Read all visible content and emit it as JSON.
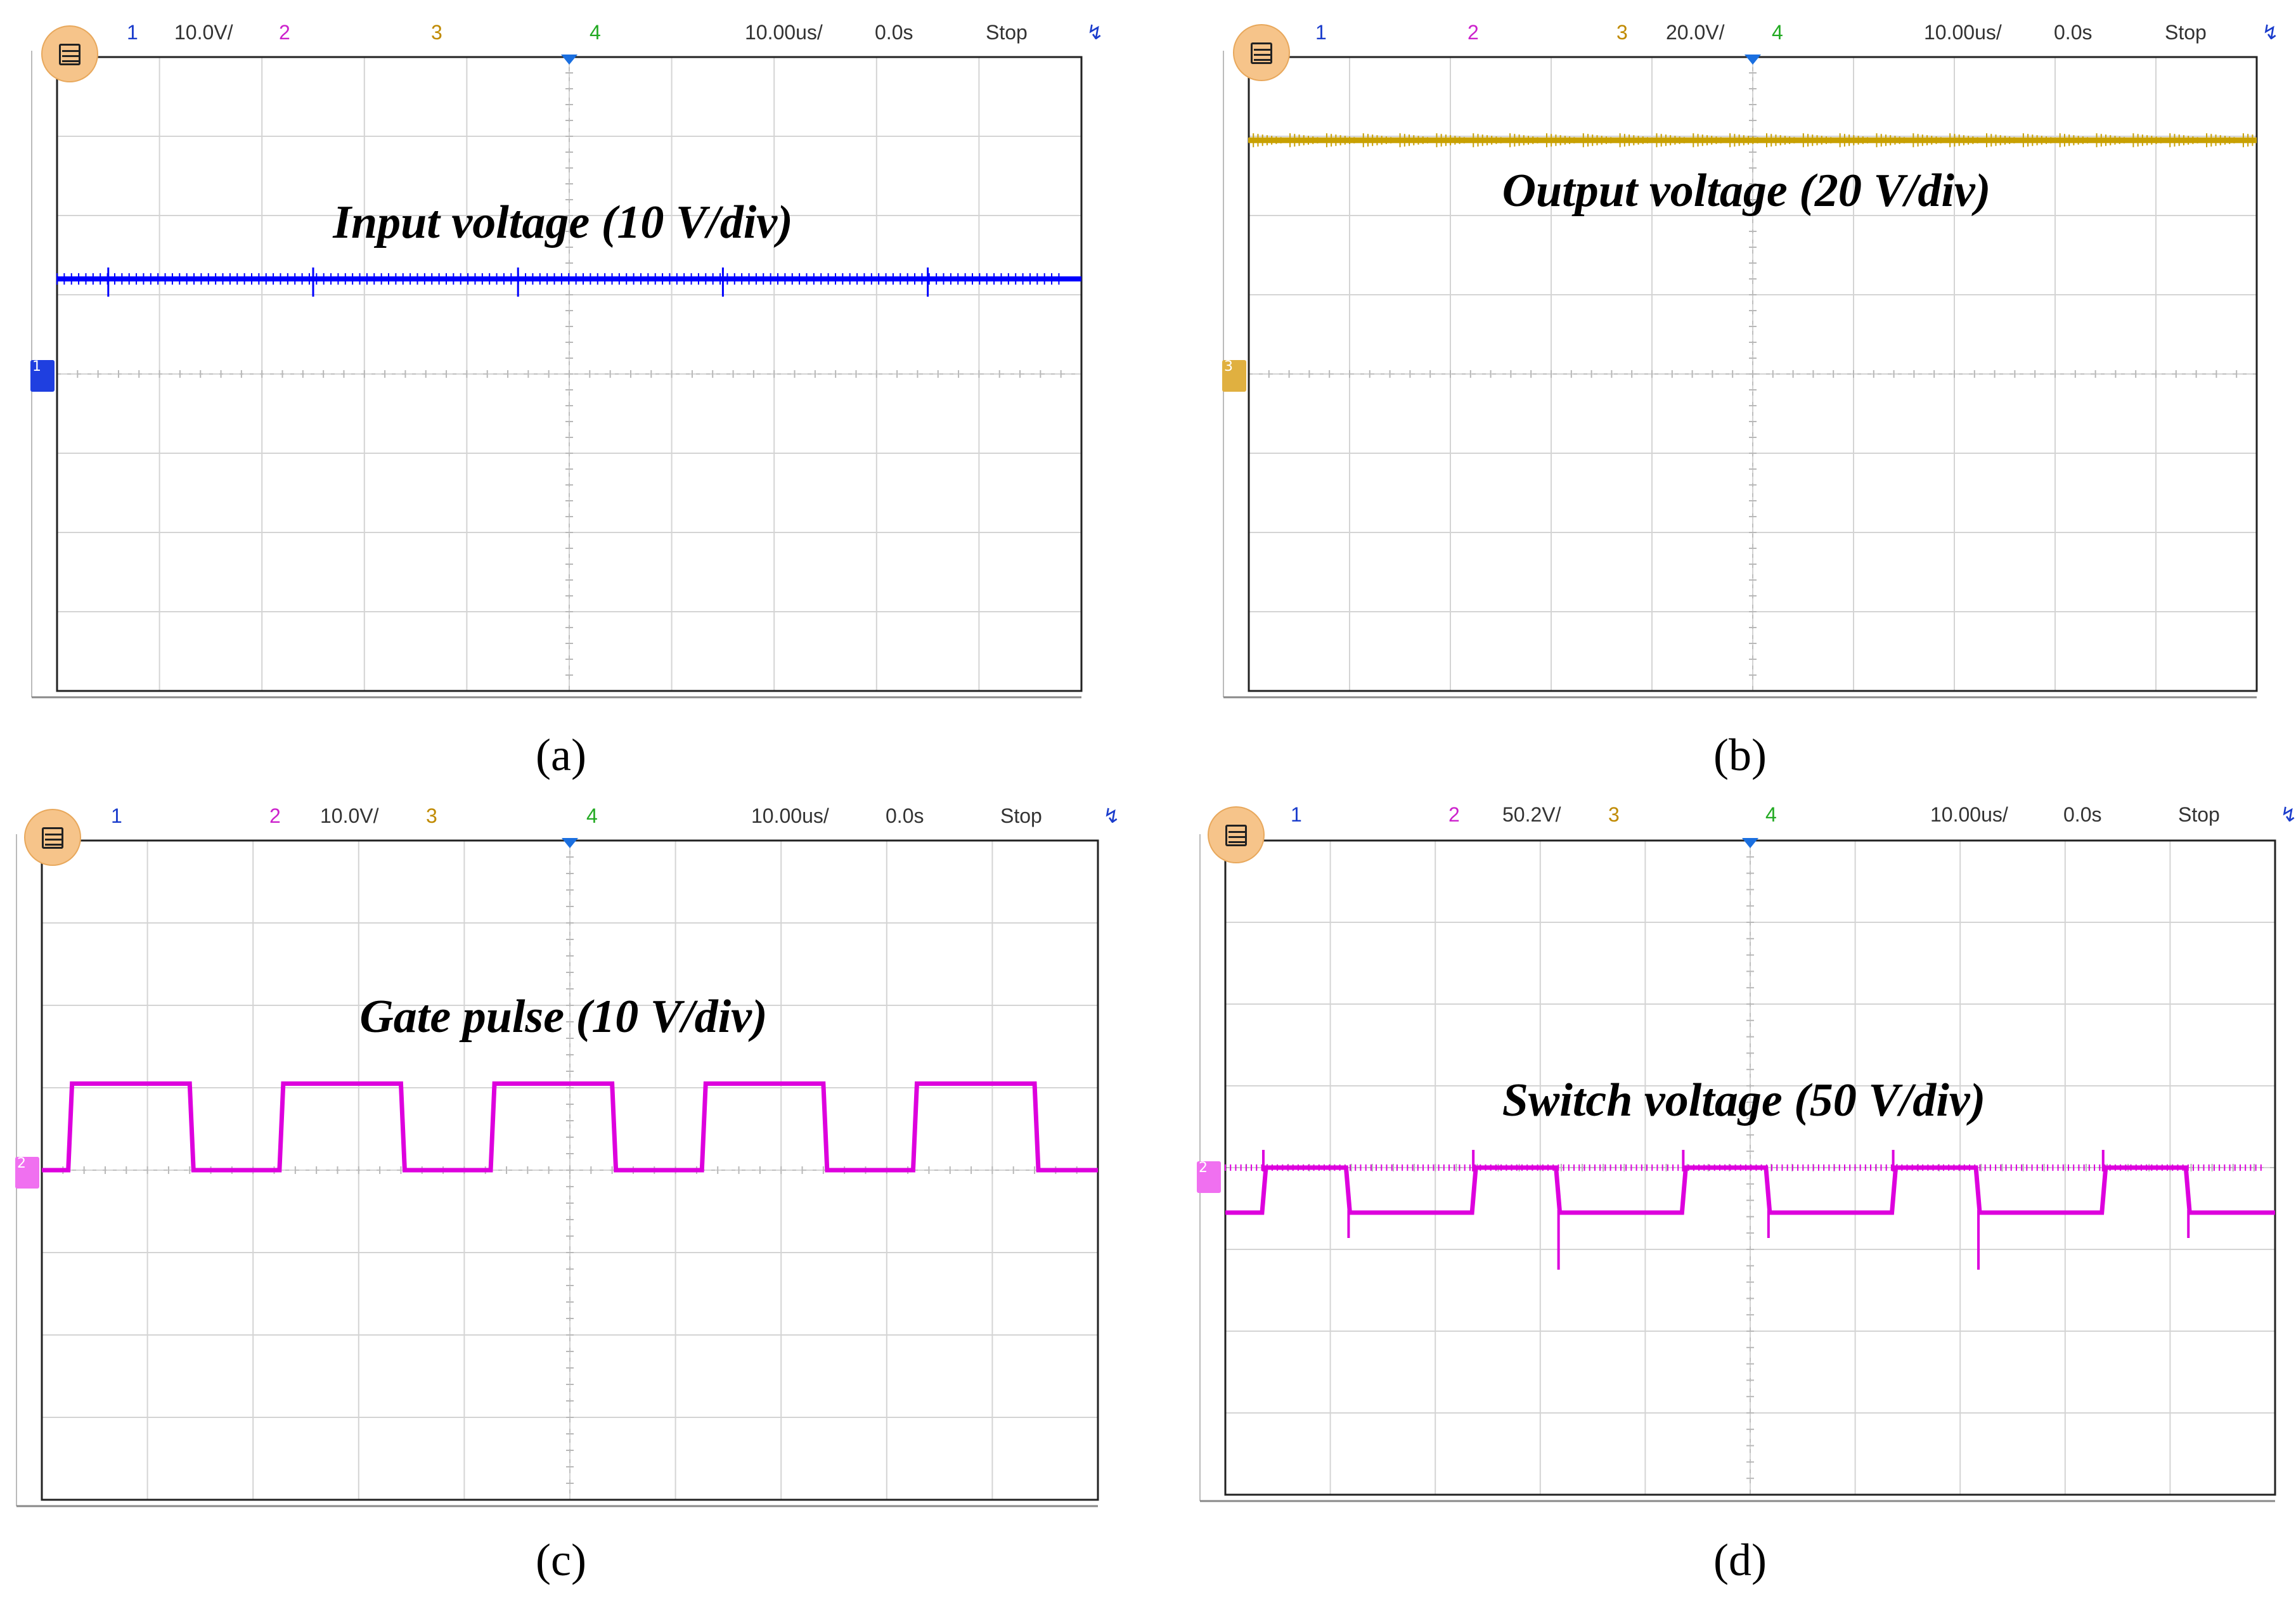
{
  "chart_data": [
    {
      "type": "line",
      "panel": "a",
      "caption": "(a)",
      "title": "Input voltage (10 V/div)",
      "header": {
        "ch1": "1",
        "ch1_scale": "10.0V/",
        "ch2": "2",
        "ch2_scale": "",
        "ch3": "3",
        "ch3_scale": "",
        "ch4": "4",
        "ch4_scale": "",
        "timebase": "10.00us/",
        "delay": "0.0s",
        "status": "Stop"
      },
      "trace": {
        "channel": "1",
        "color": "#0000ff",
        "volts_per_div": 10,
        "x_us": [
          0,
          100
        ],
        "y_div": [
          1.2,
          1.2
        ],
        "glitch_period_us": 20
      },
      "ground_marker": "1",
      "marker_color": "#1f3fe0",
      "xlim_us": [
        -50,
        50
      ],
      "ylim_div": [
        -4,
        4
      ],
      "grid": true
    },
    {
      "type": "line",
      "panel": "b",
      "caption": "(b)",
      "title": "Output voltage (20 V/div)",
      "header": {
        "ch1": "1",
        "ch1_scale": "",
        "ch2": "2",
        "ch2_scale": "",
        "ch3": "3",
        "ch3_scale": "20.0V/",
        "ch4": "4",
        "ch4_scale": "",
        "timebase": "10.00us/",
        "delay": "0.0s",
        "status": "Stop"
      },
      "trace": {
        "channel": "3",
        "color": "#c8a000",
        "volts_per_div": 20,
        "x_us": [
          0,
          100
        ],
        "y_div": [
          2.95,
          2.95
        ]
      },
      "ground_marker": "3",
      "marker_color": "#e0b040",
      "xlim_us": [
        -50,
        50
      ],
      "ylim_div": [
        -4,
        4
      ],
      "grid": true
    },
    {
      "type": "line",
      "panel": "c",
      "caption": "(c)",
      "title": "Gate pulse (10 V/div)",
      "header": {
        "ch1": "1",
        "ch1_scale": "",
        "ch2": "2",
        "ch2_scale": "10.0V/",
        "ch3": "3",
        "ch3_scale": "",
        "ch4": "4",
        "ch4_scale": "",
        "timebase": "10.00us/",
        "delay": "0.0s",
        "status": "Stop"
      },
      "trace": {
        "channel": "2",
        "color": "#dd00dd",
        "volts_per_div": 10,
        "period_us": 20,
        "high_div": 1.05,
        "low_div": 0,
        "rise_times_us": [
          2.5,
          22.5,
          42.5,
          62.5,
          82.5
        ],
        "fall_times_us": [
          14,
          34,
          54,
          74,
          94
        ]
      },
      "ground_marker": "2",
      "marker_color": "#f070f0",
      "xlim_us": [
        -50,
        50
      ],
      "ylim_div": [
        -4,
        4
      ],
      "grid": true
    },
    {
      "type": "line",
      "panel": "d",
      "caption": "(d)",
      "title": "Switch voltage (50 V/div)",
      "header": {
        "ch1": "1",
        "ch1_scale": "",
        "ch2": "2",
        "ch2_scale": "50.2V/",
        "ch3": "3",
        "ch3_scale": "",
        "ch4": "4",
        "ch4_scale": "",
        "timebase": "10.00us/",
        "delay": "0.0s",
        "status": "Stop"
      },
      "trace": {
        "channel": "2",
        "color": "#dd00dd",
        "volts_per_div": 50.2,
        "period_us": 20,
        "high_div": 0,
        "low_div": -0.55,
        "rise_times_us": [
          3.5,
          23.5,
          43.5,
          63.5,
          83.5
        ],
        "fall_times_us": [
          11.5,
          31.5,
          51.5,
          71.5,
          91.5
        ]
      },
      "ground_marker": "2",
      "marker_color": "#f070f0",
      "xlim_us": [
        -50,
        50
      ],
      "ylim_div": [
        -4,
        4
      ],
      "grid": true
    }
  ],
  "header_colors": {
    "ch1": "#1a3ccc",
    "ch2": "#cc22cc",
    "ch3": "#c08a00",
    "ch4": "#22aa22",
    "text": "#333333"
  }
}
